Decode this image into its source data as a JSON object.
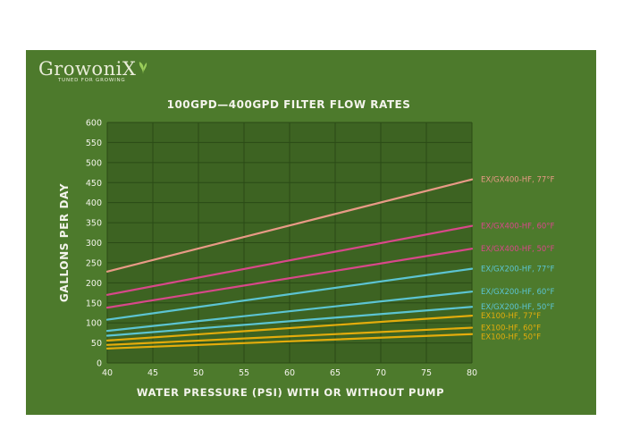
{
  "logo": {
    "brand": "GrowoniX",
    "tagline": "TUNED FOR GROWING",
    "leaf_color": "#9acd5a"
  },
  "chart_data": {
    "type": "line",
    "title": "100GPD—400GPD FILTER FLOW RATES",
    "xlabel": "WATER PRESSURE (PSI) WITH OR WITHOUT PUMP",
    "ylabel": "GALLONS PER DAY",
    "xlim": [
      40,
      80
    ],
    "ylim": [
      0,
      600
    ],
    "xticks": [
      "40",
      "45",
      "50",
      "55",
      "60",
      "65",
      "70",
      "75",
      "80"
    ],
    "yticks": [
      "0",
      "50",
      "100",
      "150",
      "200",
      "250",
      "300",
      "350",
      "400",
      "450",
      "500",
      "550",
      "600"
    ],
    "grid": true,
    "background": "#4d7a2c",
    "plot_background": "#3d6322",
    "series": [
      {
        "name": "EX/GX400-HF, 77°F",
        "color": "#e89a86",
        "x": [
          40,
          80
        ],
        "y": [
          228,
          458
        ]
      },
      {
        "name": "EX/GX400-HF, 60°F",
        "color": "#d8488a",
        "x": [
          40,
          80
        ],
        "y": [
          170,
          342
        ]
      },
      {
        "name": "EX/GX400-HF, 50°F",
        "color": "#d8488a",
        "x": [
          40,
          80
        ],
        "y": [
          138,
          285
        ]
      },
      {
        "name": "EX/GX200-HF, 77°F",
        "color": "#5cc4d2",
        "x": [
          40,
          80
        ],
        "y": [
          108,
          235
        ]
      },
      {
        "name": "EX/GX200-HF, 60°F",
        "color": "#5cc4d2",
        "x": [
          40,
          80
        ],
        "y": [
          80,
          178
        ]
      },
      {
        "name": "EX/GX200-HF, 50°F",
        "color": "#5cc4d2",
        "x": [
          40,
          80
        ],
        "y": [
          68,
          140
        ]
      },
      {
        "name": "EX100-HF, 77°F",
        "color": "#e3ac0c",
        "x": [
          40,
          80
        ],
        "y": [
          56,
          118
        ]
      },
      {
        "name": "EX100-HF, 60°F",
        "color": "#e3ac0c",
        "x": [
          40,
          80
        ],
        "y": [
          45,
          88
        ]
      },
      {
        "name": "EX100-HF, 50°F",
        "color": "#e3ac0c",
        "x": [
          40,
          80
        ],
        "y": [
          36,
          72
        ]
      }
    ]
  }
}
